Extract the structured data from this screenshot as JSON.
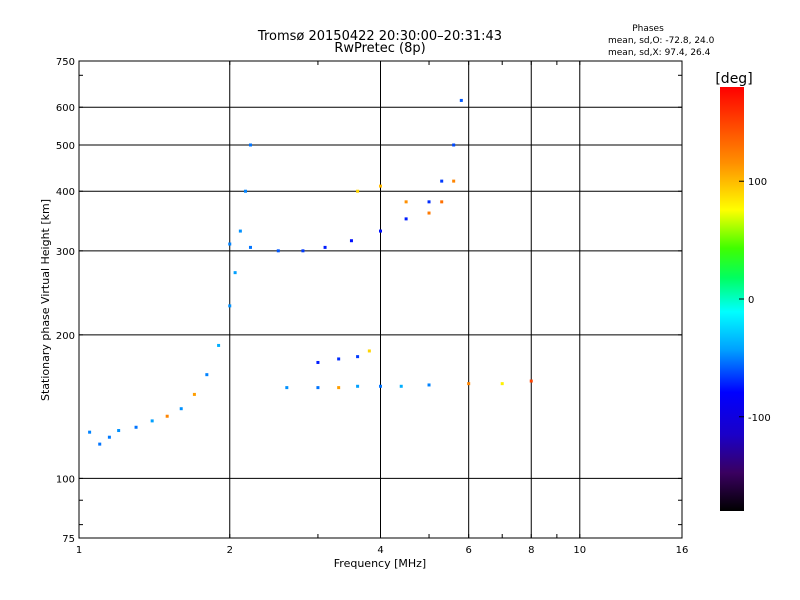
{
  "chart_data": {
    "type": "scatter",
    "title": "Tromsø 20150422 20:30:00–20:31:43",
    "subtitle": "RwPretec (8p)",
    "xlabel": "Frequency [MHz]",
    "ylabel": "Stationary phase Virtual Height [km]",
    "x_scale": "log",
    "y_scale": "log",
    "xlim": [
      1,
      16
    ],
    "ylim": [
      75,
      750
    ],
    "x_ticks": [
      1,
      2,
      4,
      6,
      8,
      10,
      16
    ],
    "x_tick_labels": [
      "1",
      "2",
      "4",
      "6",
      "8",
      "10",
      "16"
    ],
    "y_ticks": [
      75,
      100,
      200,
      300,
      400,
      500,
      600,
      750
    ],
    "y_tick_labels": [
      "75",
      "100",
      "200",
      "300",
      "400",
      "500",
      "600",
      "750"
    ],
    "grid": true,
    "annotation": {
      "title": "Phases",
      "line1": "mean, sd,O: -72.8, 24.0",
      "line2": "mean, sd,X:  97.4, 26.4"
    },
    "colorbar": {
      "label": "[deg]",
      "range": [
        -180,
        180
      ],
      "ticks": [
        100,
        0,
        -100
      ],
      "tick_labels": [
        "100",
        "0",
        "-100"
      ]
    },
    "series": [
      {
        "x": [
          1.05,
          1.1,
          1.15,
          1.2,
          1.3,
          1.4,
          1.5,
          1.6,
          1.7,
          1.8,
          1.9,
          2.0,
          2.05,
          2.1,
          2.15,
          2.2
        ],
        "y": [
          125,
          118,
          122,
          126,
          128,
          132,
          135,
          140,
          150,
          165,
          190,
          230,
          270,
          330,
          400,
          500
        ],
        "phase": [
          -55,
          -60,
          -58,
          -50,
          -60,
          -45,
          120,
          -50,
          110,
          -55,
          -40,
          -50,
          -45,
          -50,
          -55,
          -60
        ]
      },
      {
        "x": [
          2.0,
          2.2,
          2.5,
          2.8,
          3.1,
          3.5,
          4.0,
          4.5,
          5.0,
          5.3,
          5.6,
          5.8
        ],
        "y": [
          310,
          305,
          300,
          300,
          305,
          315,
          330,
          350,
          380,
          420,
          500,
          620
        ],
        "phase": [
          -55,
          -60,
          -70,
          -80,
          -90,
          -95,
          -95,
          -90,
          -85,
          -80,
          -75,
          -70
        ]
      },
      {
        "x": [
          3.6,
          4.0,
          4.5,
          5.0,
          5.3,
          5.6
        ],
        "y": [
          400,
          410,
          380,
          360,
          380,
          420
        ],
        "phase": [
          90,
          100,
          115,
          125,
          130,
          120
        ]
      },
      {
        "x": [
          2.6,
          3.0,
          3.3,
          3.6,
          4.0,
          4.4,
          5.0,
          6.0,
          7.0,
          8.0
        ],
        "y": [
          155,
          155,
          155,
          156,
          156,
          156,
          157,
          158,
          158,
          160
        ],
        "phase": [
          -50,
          -60,
          110,
          -45,
          -60,
          -40,
          -55,
          120,
          80,
          150
        ]
      },
      {
        "x": [
          3.0,
          3.3,
          3.6,
          3.8
        ],
        "y": [
          175,
          178,
          180,
          185
        ],
        "phase": [
          -90,
          -85,
          -80,
          90
        ]
      }
    ]
  }
}
